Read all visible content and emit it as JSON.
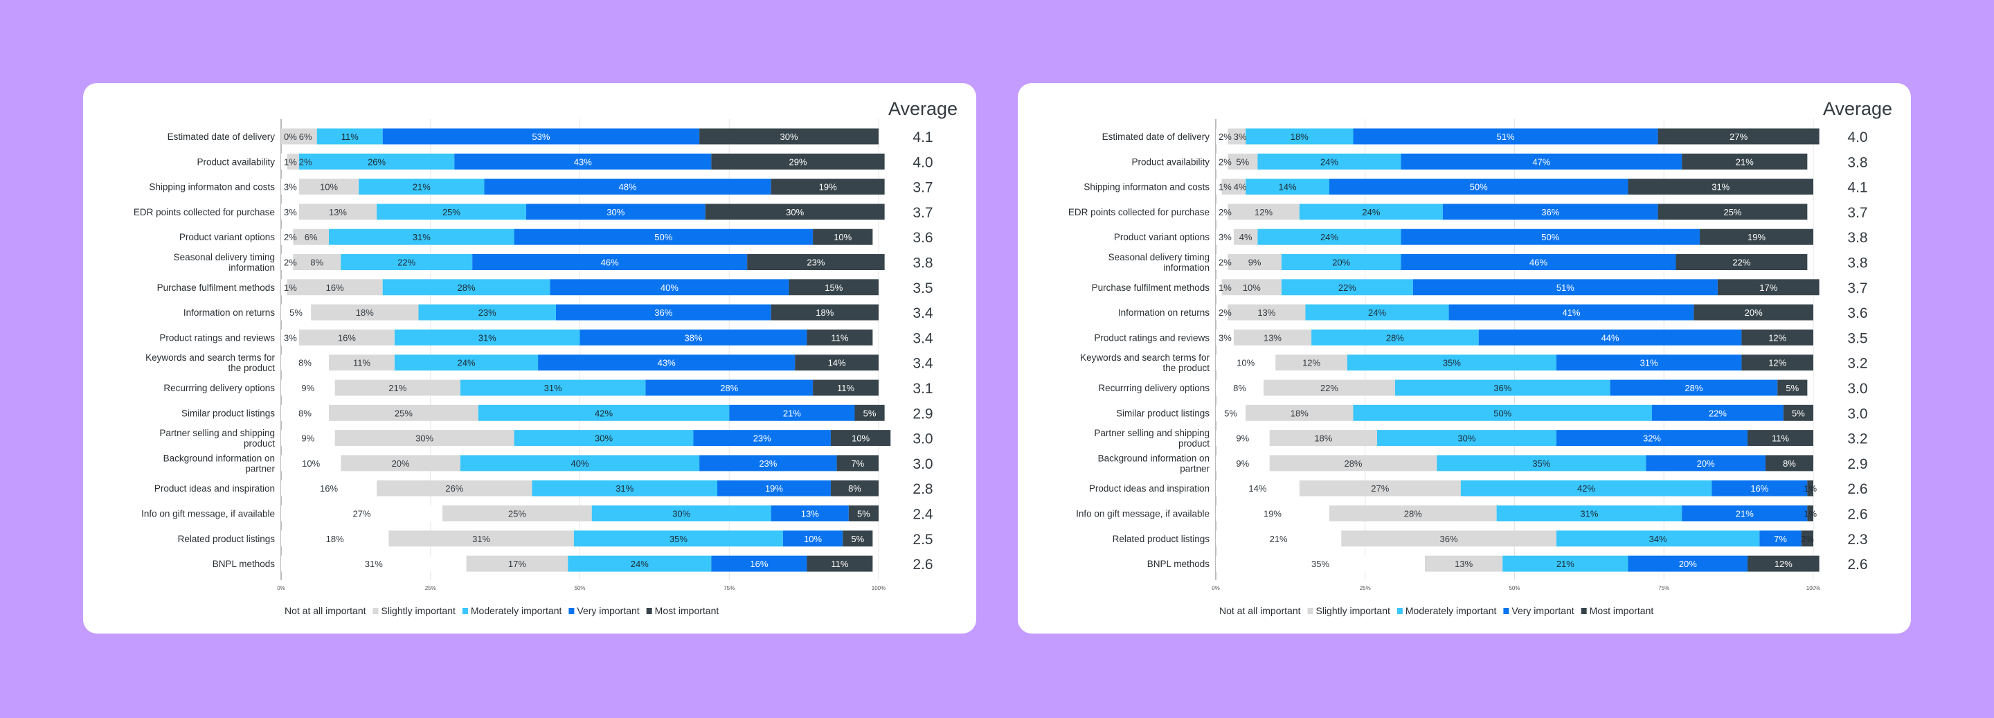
{
  "background_color": "#c49bff",
  "legend": [
    {
      "name": "Not at all important",
      "color": "#ffffff"
    },
    {
      "name": "Slightly important",
      "color": "#d9d9d9"
    },
    {
      "name": "Moderately important",
      "color": "#38c6fc"
    },
    {
      "name": "Very important",
      "color": "#0a74f0"
    },
    {
      "name": "Most important",
      "color": "#37444b"
    }
  ],
  "chart_data": [
    {
      "type": "bar",
      "orientation": "horizontal",
      "stacked": true,
      "average_header": "Average",
      "xlim": [
        0,
        100
      ],
      "xticks": [
        "0%",
        "25%",
        "50%",
        "75%",
        "100%"
      ],
      "grid": true,
      "legend_position": "bottom",
      "categories": [
        "Estimated date of delivery",
        "Product availability",
        "Shipping informaton and costs",
        "EDR points collected for purchase",
        "Product variant options",
        "Seasonal delivery timing\ninformation",
        "Purchase fulfilment methods",
        "Information on returns",
        "Product ratings and reviews",
        "Keywords and search terms for\nthe product",
        "Recurrring delivery options",
        "Similar product listings",
        "Partner selling and shipping\nproduct",
        "Background information on\npartner",
        "Product ideas and inspiration",
        "Info on gift message, if available",
        "Related product listings",
        "BNPL methods"
      ],
      "series": [
        {
          "name": "Not at all important",
          "values": [
            0,
            1,
            3,
            3,
            2,
            2,
            1,
            5,
            3,
            8,
            9,
            8,
            9,
            10,
            16,
            27,
            18,
            31
          ]
        },
        {
          "name": "Slightly important",
          "values": [
            6,
            2,
            10,
            13,
            6,
            8,
            16,
            18,
            16,
            11,
            21,
            25,
            30,
            20,
            26,
            25,
            31,
            17
          ]
        },
        {
          "name": "Moderately important",
          "values": [
            11,
            26,
            21,
            25,
            31,
            22,
            28,
            23,
            31,
            24,
            31,
            42,
            30,
            40,
            31,
            30,
            35,
            24
          ]
        },
        {
          "name": "Very important",
          "values": [
            53,
            43,
            48,
            30,
            50,
            46,
            40,
            36,
            38,
            43,
            28,
            21,
            23,
            23,
            19,
            13,
            10,
            16
          ]
        },
        {
          "name": "Most important",
          "values": [
            30,
            29,
            19,
            30,
            10,
            23,
            15,
            18,
            11,
            14,
            11,
            5,
            10,
            7,
            8,
            5,
            5,
            11
          ]
        }
      ],
      "averages": [
        "4.1",
        "4.0",
        "3.7",
        "3.7",
        "3.6",
        "3.8",
        "3.5",
        "3.4",
        "3.4",
        "3.4",
        "3.1",
        "2.9",
        "3.0",
        "3.0",
        "2.8",
        "2.4",
        "2.5",
        "2.6"
      ]
    },
    {
      "type": "bar",
      "orientation": "horizontal",
      "stacked": true,
      "average_header": "Average",
      "xlim": [
        0,
        100
      ],
      "xticks": [
        "0%",
        "25%",
        "50%",
        "75%",
        "100%"
      ],
      "grid": true,
      "legend_position": "bottom",
      "categories": [
        "Estimated date of delivery",
        "Product availability",
        "Shipping informaton and costs",
        "EDR points collected for purchase",
        "Product variant options",
        "Seasonal delivery timing\ninformation",
        "Purchase fulfilment methods",
        "Information on returns",
        "Product ratings and reviews",
        "Keywords and search terms for\nthe product",
        "Recurrring delivery options",
        "Similar product listings",
        "Partner selling and shipping\nproduct",
        "Background information on\npartner",
        "Product ideas and inspiration",
        "Info on gift message, if available",
        "Related product listings",
        "BNPL methods"
      ],
      "series": [
        {
          "name": "Not at all important",
          "values": [
            2,
            2,
            1,
            2,
            3,
            2,
            1,
            2,
            3,
            10,
            8,
            5,
            9,
            9,
            14,
            19,
            21,
            35
          ]
        },
        {
          "name": "Slightly important",
          "values": [
            3,
            5,
            4,
            12,
            4,
            9,
            10,
            13,
            13,
            12,
            22,
            18,
            18,
            28,
            27,
            28,
            36,
            13
          ]
        },
        {
          "name": "Moderately important",
          "values": [
            18,
            24,
            14,
            24,
            24,
            20,
            22,
            24,
            28,
            35,
            36,
            50,
            30,
            35,
            42,
            31,
            34,
            21
          ]
        },
        {
          "name": "Very important",
          "values": [
            51,
            47,
            50,
            36,
            50,
            46,
            51,
            41,
            44,
            31,
            28,
            22,
            32,
            20,
            16,
            21,
            7,
            20
          ]
        },
        {
          "name": "Most important",
          "values": [
            27,
            21,
            31,
            25,
            19,
            22,
            17,
            20,
            12,
            12,
            5,
            5,
            11,
            8,
            1,
            1,
            2,
            12
          ]
        }
      ],
      "averages": [
        "4.0",
        "3.8",
        "4.1",
        "3.7",
        "3.8",
        "3.8",
        "3.7",
        "3.6",
        "3.5",
        "3.2",
        "3.0",
        "3.0",
        "3.2",
        "2.9",
        "2.6",
        "2.6",
        "2.3",
        "2.6"
      ]
    }
  ]
}
